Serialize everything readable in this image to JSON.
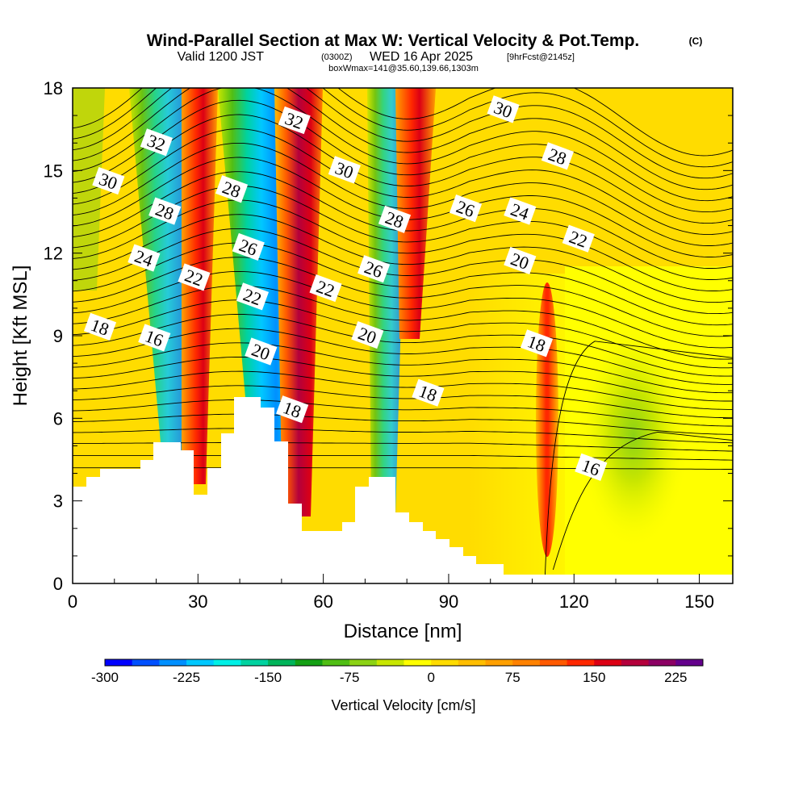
{
  "titles": {
    "main": "Wind-Parallel Section at Max W: Vertical Velocity & Pot.Temp.",
    "copyright": "(C)",
    "valid_pre": "Valid 1200 JST",
    "valid_zulu": "(0300Z)",
    "valid_date": "WED 16 Apr 2025",
    "forecast": "[9hrFcst@2145z]",
    "box_info": "boxWmax=141@35.60,139.66,1303m"
  },
  "chart_data": {
    "type": "heatmap",
    "xlabel": "Distance [nm]",
    "ylabel": "Height [Kft MSL]",
    "xlim": [
      0,
      158
    ],
    "ylim": [
      0,
      18
    ],
    "x_ticks": [
      0,
      30,
      60,
      90,
      120,
      150
    ],
    "y_ticks": [
      0,
      3,
      6,
      9,
      12,
      15,
      18
    ],
    "colorbar": {
      "label": "Vertical Velocity [cm/s]",
      "ticks": [
        -300,
        -225,
        -150,
        -75,
        0,
        75,
        150,
        225
      ],
      "min": -300,
      "max": 250,
      "step": 25,
      "colors": [
        "#0000ff",
        "#0050ff",
        "#0090ff",
        "#00c8ff",
        "#00f0e6",
        "#00d2a0",
        "#00b45a",
        "#14a014",
        "#50be14",
        "#8cd214",
        "#c8e600",
        "#ffff00",
        "#ffdc00",
        "#ffbe00",
        "#ffa000",
        "#ff8200",
        "#ff5a00",
        "#ff2800",
        "#dc0014",
        "#b4003c",
        "#8c0064",
        "#64008c"
      ]
    },
    "theta_contour_labels": [
      {
        "value": "32",
        "x": 20,
        "y": 16.0
      },
      {
        "value": "30",
        "x": 8.5,
        "y": 14.6
      },
      {
        "value": "28",
        "x": 22,
        "y": 13.5
      },
      {
        "value": "28",
        "x": 38,
        "y": 14.3
      },
      {
        "value": "24",
        "x": 17,
        "y": 11.8
      },
      {
        "value": "22",
        "x": 29,
        "y": 11.1
      },
      {
        "value": "26",
        "x": 42,
        "y": 12.2
      },
      {
        "value": "22",
        "x": 43,
        "y": 10.4
      },
      {
        "value": "20",
        "x": 45,
        "y": 8.4
      },
      {
        "value": "32",
        "x": 53,
        "y": 16.8
      },
      {
        "value": "30",
        "x": 65,
        "y": 15.0
      },
      {
        "value": "22",
        "x": 60.5,
        "y": 10.7
      },
      {
        "value": "18",
        "x": 52.5,
        "y": 6.3
      },
      {
        "value": "20",
        "x": 70.5,
        "y": 9.0
      },
      {
        "value": "26",
        "x": 72,
        "y": 11.4
      },
      {
        "value": "28",
        "x": 77,
        "y": 13.2
      },
      {
        "value": "18",
        "x": 85,
        "y": 6.9
      },
      {
        "value": "26",
        "x": 94,
        "y": 13.6
      },
      {
        "value": "30",
        "x": 103,
        "y": 17.2
      },
      {
        "value": "28",
        "x": 116,
        "y": 15.5
      },
      {
        "value": "24",
        "x": 107,
        "y": 13.5
      },
      {
        "value": "22",
        "x": 121,
        "y": 12.5
      },
      {
        "value": "20",
        "x": 107,
        "y": 11.7
      },
      {
        "value": "18",
        "x": 111,
        "y": 8.7
      },
      {
        "value": "16",
        "x": 124,
        "y": 4.2
      },
      {
        "value": "18",
        "x": 6.5,
        "y": 9.3
      },
      {
        "value": "16",
        "x": 19.5,
        "y": 8.9
      }
    ]
  }
}
